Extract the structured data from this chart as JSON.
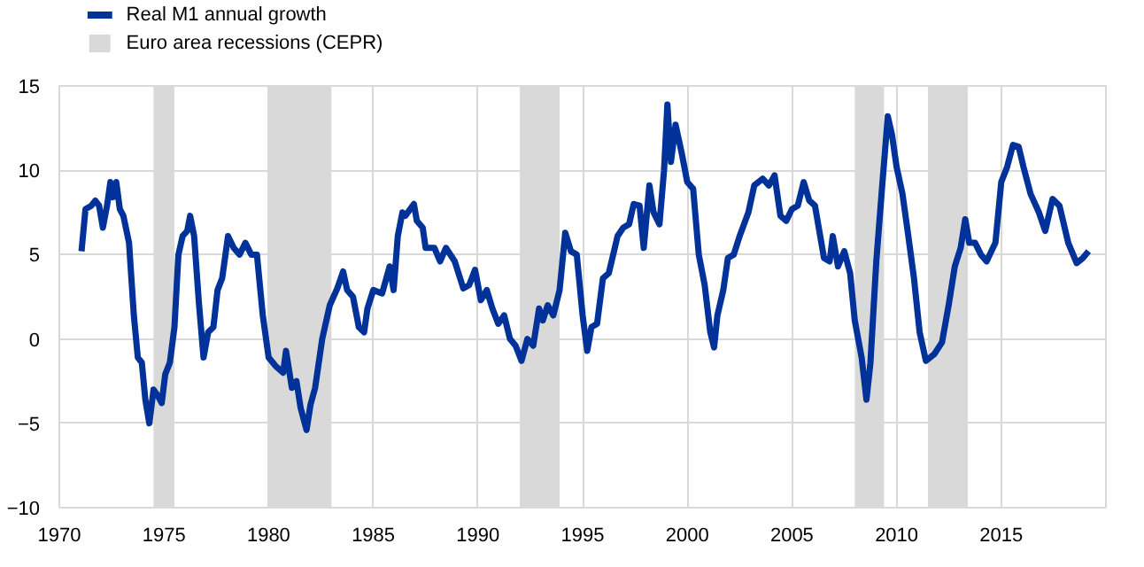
{
  "chart_data": {
    "type": "line",
    "x": [
      1971.06,
      1971.25,
      1971.53,
      1971.72,
      1971.9,
      1972.08,
      1972.28,
      1972.44,
      1972.56,
      1972.72,
      1972.89,
      1973.06,
      1973.33,
      1973.56,
      1973.75,
      1973.94,
      1974.11,
      1974.3,
      1974.5,
      1974.72,
      1974.89,
      1975.06,
      1975.28,
      1975.5,
      1975.69,
      1975.89,
      1976.11,
      1976.25,
      1976.44,
      1976.67,
      1976.89,
      1977.11,
      1977.36,
      1977.56,
      1977.78,
      1978.06,
      1978.33,
      1978.61,
      1978.89,
      1979.17,
      1979.44,
      1979.72,
      1980.0,
      1980.33,
      1980.69,
      1980.83,
      1981.11,
      1981.33,
      1981.53,
      1981.81,
      1982.0,
      1982.22,
      1982.56,
      1982.92,
      1983.28,
      1983.56,
      1983.75,
      1984.03,
      1984.31,
      1984.56,
      1984.72,
      1985.0,
      1985.42,
      1985.78,
      1985.97,
      1986.17,
      1986.39,
      1986.53,
      1986.94,
      1987.08,
      1987.36,
      1987.5,
      1987.92,
      1988.19,
      1988.47,
      1988.89,
      1989.3,
      1989.58,
      1989.86,
      1990.14,
      1990.42,
      1990.69,
      1990.97,
      1991.25,
      1991.53,
      1991.8,
      1992.08,
      1992.36,
      1992.64,
      1992.92,
      1993.1,
      1993.33,
      1993.6,
      1993.9,
      1994.17,
      1994.44,
      1994.72,
      1995.0,
      1995.22,
      1995.42,
      1995.69,
      1995.97,
      1996.25,
      1996.67,
      1996.94,
      1997.22,
      1997.44,
      1997.72,
      1997.92,
      1998.19,
      1998.39,
      1998.67,
      1998.89,
      1999.05,
      1999.22,
      1999.44,
      1999.72,
      2000.0,
      2000.28,
      2000.55,
      2000.83,
      2001.1,
      2001.28,
      2001.44,
      2001.72,
      2001.94,
      2002.22,
      2002.5,
      2002.92,
      2003.2,
      2003.6,
      2003.9,
      2004.17,
      2004.45,
      2004.73,
      2005.0,
      2005.28,
      2005.56,
      2005.83,
      2006.1,
      2006.53,
      2006.8,
      2006.95,
      2007.2,
      2007.5,
      2007.78,
      2008.0,
      2008.33,
      2008.56,
      2008.75,
      2009.03,
      2009.3,
      2009.58,
      2009.78,
      2010.0,
      2010.28,
      2010.56,
      2010.83,
      2011.1,
      2011.4,
      2011.8,
      2012.17,
      2012.5,
      2012.78,
      2013.06,
      2013.28,
      2013.47,
      2013.75,
      2014.03,
      2014.3,
      2014.72,
      2015.0,
      2015.28,
      2015.56,
      2015.83,
      2016.06,
      2016.4,
      2016.8,
      2017.1,
      2017.45,
      2017.78,
      2018.2,
      2018.6,
      2018.9,
      2019.17
    ],
    "series": [
      {
        "name": "Real M1 annual growth",
        "color": "#003299",
        "values": [
          5.2,
          7.7,
          7.9,
          8.2,
          7.9,
          6.6,
          7.9,
          9.3,
          8.4,
          9.3,
          7.7,
          7.3,
          5.7,
          1.4,
          -1.1,
          -1.4,
          -3.6,
          -5.0,
          -3.0,
          -3.4,
          -3.8,
          -2.1,
          -1.4,
          0.7,
          5.0,
          6.1,
          6.4,
          7.3,
          6.1,
          2.1,
          -1.1,
          0.4,
          0.7,
          2.9,
          3.6,
          6.1,
          5.4,
          5.0,
          5.7,
          5.0,
          5.0,
          1.4,
          -1.1,
          -1.6,
          -2.0,
          -0.7,
          -2.9,
          -2.5,
          -4.1,
          -5.4,
          -3.9,
          -2.9,
          0.0,
          2.0,
          3.0,
          4.0,
          2.9,
          2.5,
          0.7,
          0.4,
          1.8,
          2.9,
          2.7,
          4.3,
          2.9,
          6.1,
          7.5,
          7.3,
          8.0,
          7.0,
          6.6,
          5.4,
          5.4,
          4.6,
          5.4,
          4.6,
          3.0,
          3.2,
          4.1,
          2.3,
          2.9,
          1.8,
          0.9,
          1.4,
          0.0,
          -0.4,
          -1.3,
          0.0,
          -0.4,
          1.8,
          1.1,
          2.0,
          1.4,
          2.9,
          6.3,
          5.2,
          5.0,
          1.4,
          -0.7,
          0.7,
          0.9,
          3.6,
          3.9,
          6.1,
          6.6,
          6.8,
          8.0,
          7.9,
          5.4,
          9.1,
          7.5,
          6.8,
          10.0,
          13.9,
          10.5,
          12.7,
          11.1,
          9.3,
          8.9,
          5.0,
          3.2,
          0.4,
          -0.5,
          1.4,
          2.9,
          4.8,
          5.0,
          6.1,
          7.5,
          9.1,
          9.5,
          9.1,
          9.7,
          7.3,
          7.0,
          7.7,
          7.9,
          9.3,
          8.2,
          7.9,
          4.8,
          4.6,
          6.1,
          4.3,
          5.2,
          3.9,
          1.1,
          -1.1,
          -3.6,
          -1.4,
          4.6,
          8.9,
          13.2,
          12.1,
          10.2,
          8.6,
          6.1,
          3.6,
          0.4,
          -1.3,
          -0.9,
          -0.2,
          2.1,
          4.3,
          5.4,
          7.1,
          5.7,
          5.7,
          5.0,
          4.6,
          5.7,
          9.3,
          10.2,
          11.5,
          11.4,
          10.2,
          8.6,
          7.5,
          6.4,
          8.3,
          7.9,
          5.7,
          4.5,
          4.8,
          5.2
        ]
      }
    ],
    "bands": [
      {
        "axis": "x",
        "from": 1974.5,
        "to": 1975.5,
        "label": "Euro area recessions (CEPR)",
        "color": "#d9d9d9"
      },
      {
        "axis": "x",
        "from": 1980.0,
        "to": 1983.0,
        "color": "#d9d9d9"
      },
      {
        "axis": "x",
        "from": 1992.0,
        "to": 1993.9,
        "color": "#d9d9d9"
      },
      {
        "axis": "x",
        "from": 2008.0,
        "to": 2009.4,
        "color": "#d9d9d9"
      },
      {
        "axis": "x",
        "from": 2011.5,
        "to": 2013.4,
        "color": "#d9d9d9"
      }
    ],
    "xlim": [
      1970,
      2020
    ],
    "xticks": [
      1970,
      1975,
      1980,
      1985,
      1990,
      1995,
      2000,
      2005,
      2010,
      2015
    ],
    "ylim": [
      -10,
      15
    ],
    "yticks": [
      -10,
      -5,
      0,
      5,
      10,
      15
    ],
    "grid": true,
    "legend": "top left",
    "line_style": "solid"
  }
}
